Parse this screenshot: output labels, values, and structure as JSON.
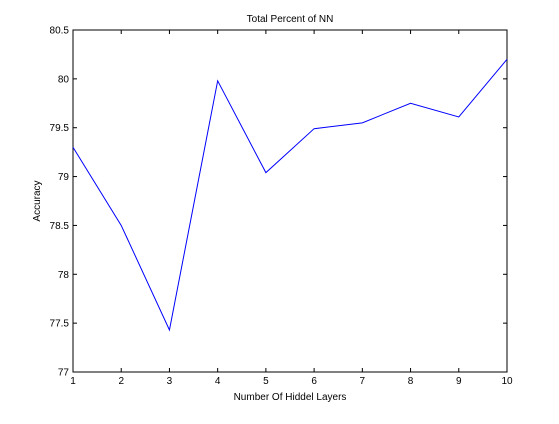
{
  "chart_data": {
    "type": "line",
    "title": "Total Percent of NN",
    "xlabel": "Number Of Hiddel Layers",
    "ylabel": "Accuracy",
    "xlim": [
      1,
      10
    ],
    "ylim": [
      77,
      80.5
    ],
    "xticks": [
      1,
      2,
      3,
      4,
      5,
      6,
      7,
      8,
      9,
      10
    ],
    "yticks": [
      77,
      77.5,
      78,
      78.5,
      79,
      79.5,
      80,
      80.5
    ],
    "xtick_labels": [
      "1",
      "2",
      "3",
      "4",
      "5",
      "6",
      "7",
      "8",
      "9",
      "10"
    ],
    "ytick_labels": [
      "77",
      "77.5",
      "78",
      "78.5",
      "79",
      "79.5",
      "80",
      "80.5"
    ],
    "grid": false,
    "series": [
      {
        "x": [
          1,
          2,
          3,
          4,
          5,
          6,
          7,
          8,
          9,
          10
        ],
        "y": [
          79.3,
          78.5,
          77.43,
          79.98,
          79.04,
          79.49,
          79.55,
          79.75,
          79.61,
          80.2
        ],
        "color": "#0000ff"
      }
    ]
  }
}
